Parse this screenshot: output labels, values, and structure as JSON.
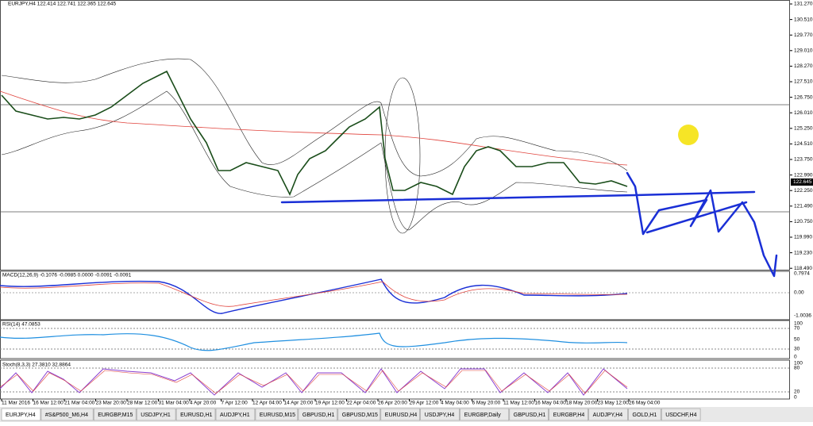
{
  "header": {
    "symbol_info": "EURJPY,H4  122.414 122.741 122.365 122.645"
  },
  "price_axis": [
    "131.270",
    "130.510",
    "129.770",
    "129.010",
    "128.270",
    "127.510",
    "126.750",
    "126.010",
    "125.250",
    "124.510",
    "123.750",
    "122.990",
    "122.250",
    "121.490",
    "120.750",
    "119.990",
    "119.230",
    "118.490"
  ],
  "current_price": "122.645",
  "macd": {
    "label": "MACD(12,26,9) -0.1076 -0.0985 0.0000 -0.0091 -0.0091",
    "axis": [
      "0.7974",
      "0.00",
      "-1.0036"
    ]
  },
  "rsi": {
    "label": "RSI(14) 47.0853",
    "axis": [
      "100",
      "70",
      "50",
      "30",
      "0"
    ]
  },
  "stoch": {
    "label": "Stoch(8,3,3) 27.3810 32.8864",
    "axis": [
      "100",
      "80",
      "20",
      "0"
    ]
  },
  "time_axis": [
    "11 Mar 2016",
    "16 Mar 12:00",
    "21 Mar 04:00",
    "23 Mar 20:00",
    "28 Mar 12:00",
    "31 Mar 04:00",
    "4 Apr 20:00",
    "7 Apr 12:00",
    "12 Apr 04:00",
    "14 Apr 20:00",
    "19 Apr 12:00",
    "22 Apr 04:00",
    "26 Apr 20:00",
    "29 Apr 12:00",
    "4 May 04:00",
    "6 May 20:00",
    "11 May 12:00",
    "16 May 04:00",
    "18 May 20:00",
    "23 May 12:00",
    "26 May 04:00"
  ],
  "tabs": [
    "EURJPY,H4",
    "#S&P500_M6,H4",
    "EURGBP,M15",
    "USDJPY,H1",
    "EURUSD,H1",
    "AUDJPY,H1",
    "EURUSD,M15",
    "GBPUSD,H1",
    "GBPUSD,M15",
    "EURUSD,H4",
    "USDJPY,H4",
    "EURGBP,Daily",
    "GBPUSD,H1",
    "EURGBP,H4",
    "AUDJPY,H4",
    "GOLD,H1",
    "USDCHF,H4"
  ]
}
